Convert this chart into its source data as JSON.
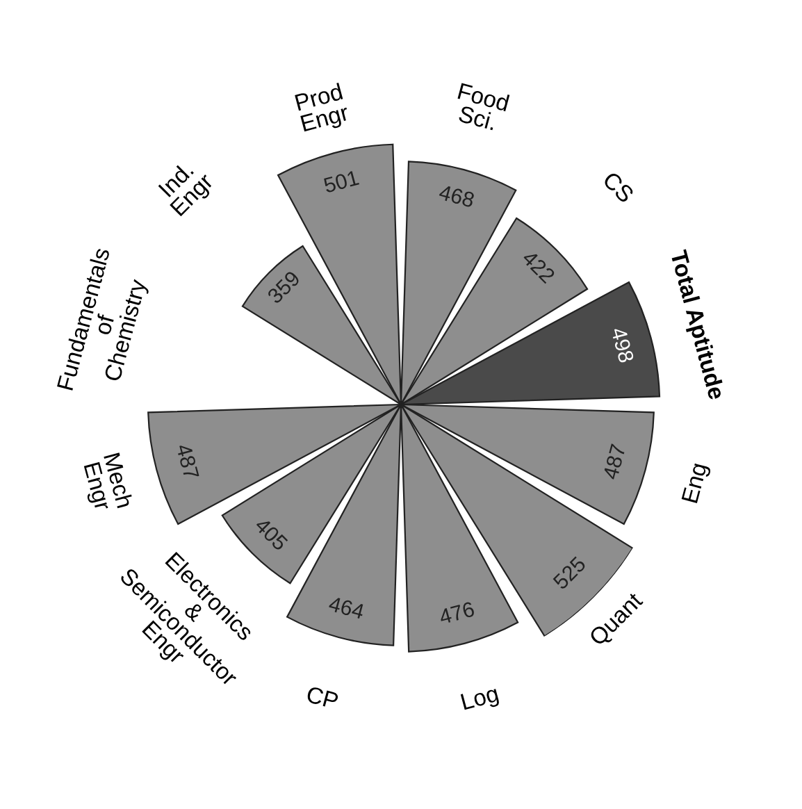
{
  "chart_data": {
    "type": "other",
    "categories": [
      "Food\nSci.",
      "CS",
      "Total Aptitude",
      "Eng",
      "Quant",
      "Log",
      "CP",
      "Electronics\n&\nSemiconductor\nEngr",
      "Mech\nEngr",
      "Fundamentals\nof\nChemistry",
      "Ind.\nEngr",
      "Prod\nEngr"
    ],
    "values": [
      468,
      422,
      498,
      487,
      525,
      476,
      464,
      405,
      487,
      null,
      359,
      501
    ],
    "colors": [
      "#8e8e8e",
      "#8e8e8e",
      "#4a4a4a",
      "#8e8e8e",
      "#8e8e8e",
      "#8e8e8e",
      "#8e8e8e",
      "#8e8e8e",
      "#8e8e8e",
      "#8e8e8e",
      "#8e8e8e",
      "#8e8e8e"
    ],
    "data_labels": true
  }
}
